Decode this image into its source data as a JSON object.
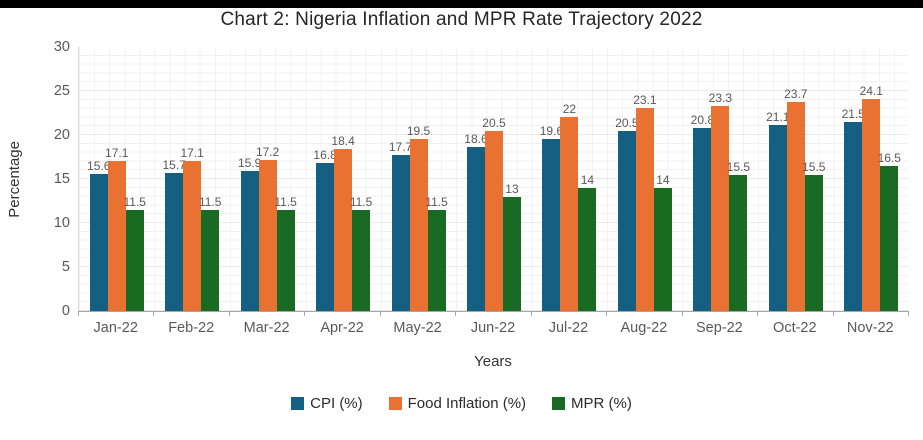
{
  "page": {
    "background": "#ffffff",
    "top_bar_color": "#000000"
  },
  "chart_data": {
    "type": "bar",
    "title": "Chart 2: Nigeria Inflation and MPR Rate Trajectory 2022",
    "xlabel": "Years",
    "ylabel": "Percentage",
    "ylim": [
      0,
      30
    ],
    "yticks": [
      0,
      5,
      10,
      15,
      20,
      25,
      30
    ],
    "grid": "light gray minor horizontal and vertical gridlines",
    "legend_position": "bottom center",
    "data_labels": true,
    "categories": [
      "Jan-22",
      "Feb-22",
      "Mar-22",
      "Apr-22",
      "May-22",
      "Jun-22",
      "Jul-22",
      "Aug-22",
      "Sep-22",
      "Oct-22",
      "Nov-22"
    ],
    "series": [
      {
        "name": "CPI (%)",
        "color": "#156082",
        "values": [
          15.6,
          15.7,
          15.9,
          16.8,
          17.7,
          18.6,
          19.6,
          20.5,
          20.8,
          21.1,
          21.5
        ]
      },
      {
        "name": "Food Inflation (%)",
        "color": "#E97132",
        "values": [
          17.1,
          17.1,
          17.2,
          18.4,
          19.5,
          20.5,
          22,
          23.1,
          23.3,
          23.7,
          24.1
        ]
      },
      {
        "name": "MPR (%)",
        "color": "#196B24",
        "values": [
          11.5,
          11.5,
          11.5,
          11.5,
          11.5,
          13,
          14,
          14,
          15.5,
          15.5,
          16.5
        ]
      }
    ]
  }
}
